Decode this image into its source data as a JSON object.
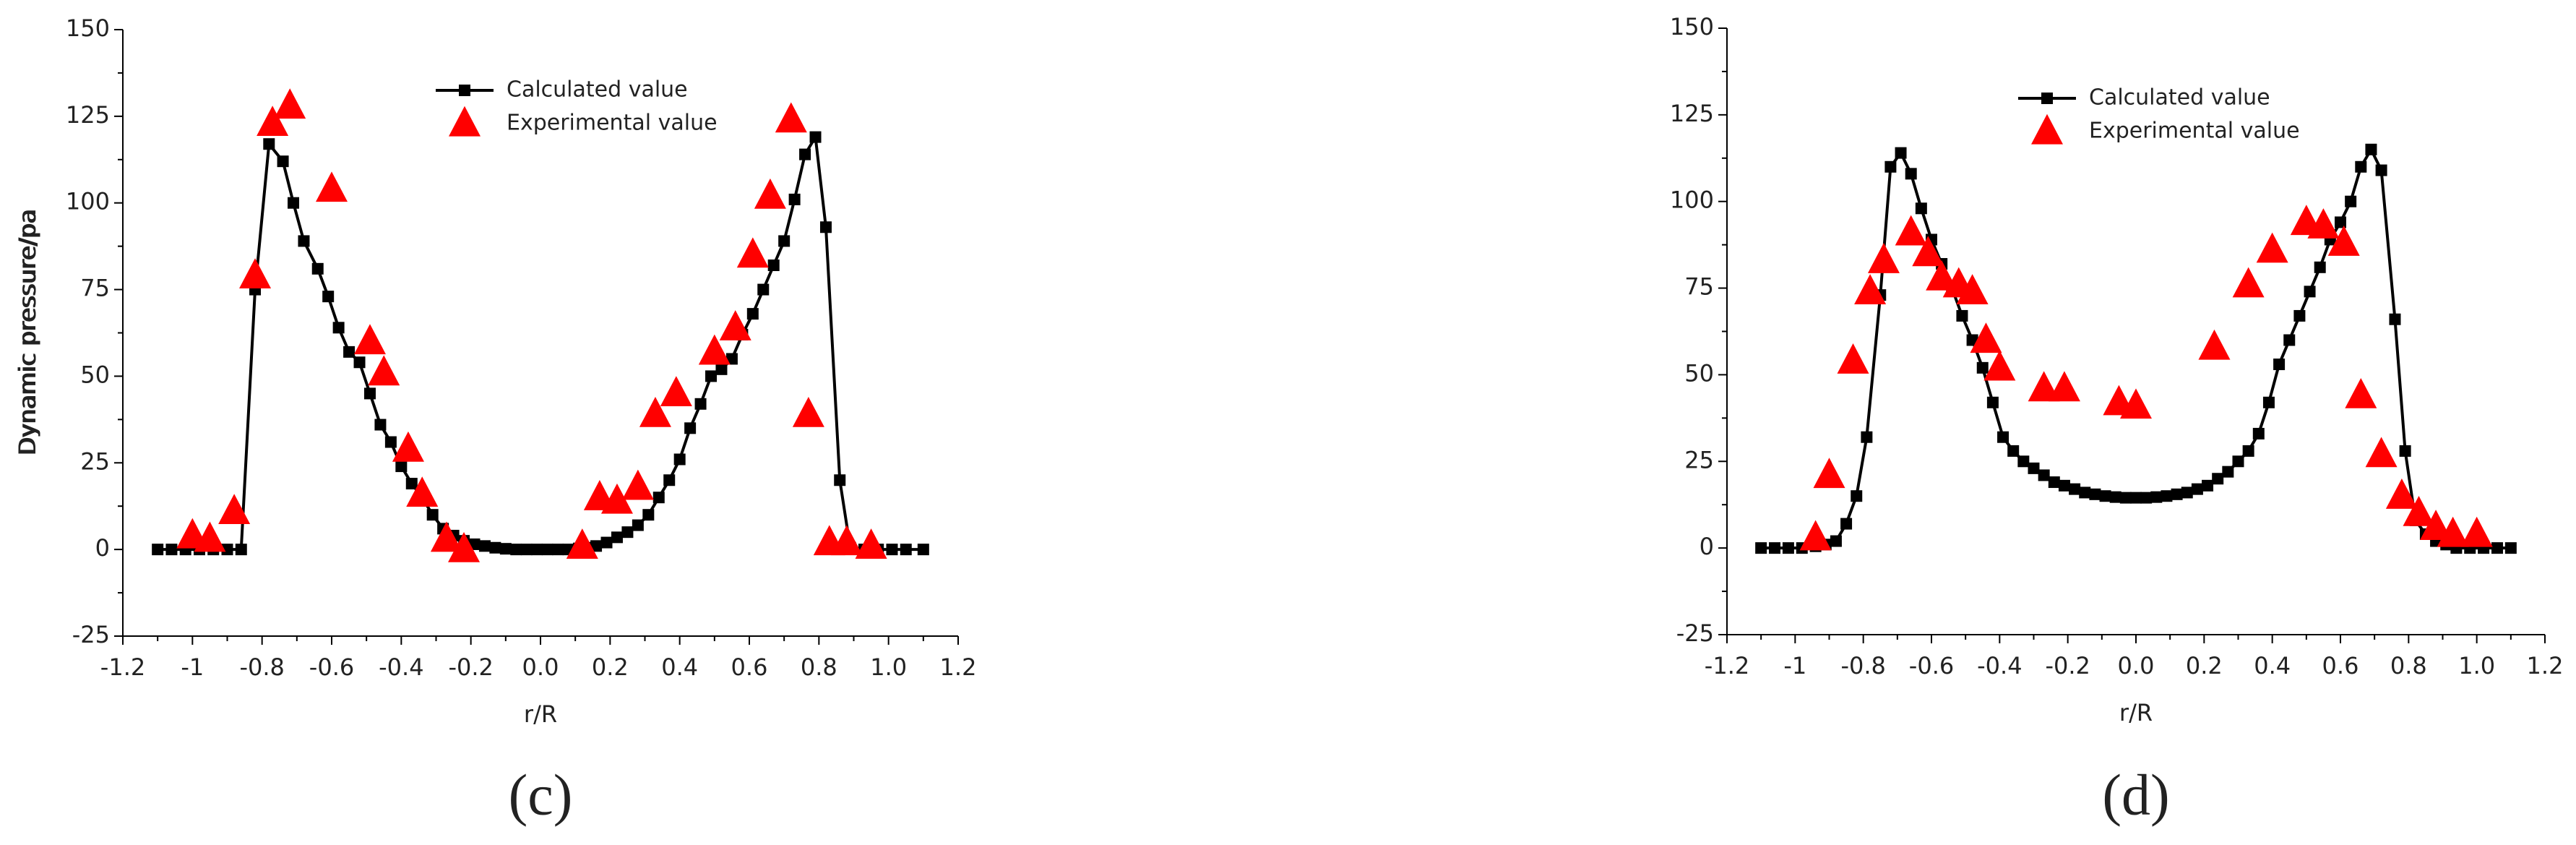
{
  "chart_data": [
    {
      "type": "line",
      "panel_label": "(c)",
      "x_label": "r/R",
      "y_label": "Dynamic pressure/pa",
      "xlim": [
        -1.2,
        1.2
      ],
      "ylim": [
        -25,
        150
      ],
      "xticks": [
        -1.2,
        -1.0,
        -0.8,
        -0.6,
        -0.4,
        -0.2,
        {
          "value": 0,
          "label": "0.0"
        },
        0.2,
        0.4,
        0.6,
        0.8,
        {
          "value": 1,
          "label": "1.0"
        },
        1.2
      ],
      "yticks": [
        -25,
        0,
        25,
        50,
        75,
        100,
        125,
        150
      ],
      "series": [
        {
          "name": "Calculated value",
          "color": "#000000",
          "marker": "square",
          "line": true,
          "x": [
            -1.1,
            -1.06,
            -1.02,
            -0.98,
            -0.94,
            -0.9,
            -0.86,
            -0.82,
            -0.78,
            -0.74,
            -0.71,
            -0.68,
            -0.64,
            -0.61,
            -0.58,
            -0.55,
            -0.52,
            -0.49,
            -0.46,
            -0.43,
            -0.4,
            -0.37,
            -0.34,
            -0.31,
            -0.28,
            -0.25,
            -0.22,
            -0.19,
            -0.16,
            -0.13,
            -0.1,
            -0.07,
            -0.04,
            -0.01,
            0.02,
            0.05,
            0.08,
            0.11,
            0.13,
            0.16,
            0.19,
            0.22,
            0.25,
            0.28,
            0.31,
            0.34,
            0.37,
            0.4,
            0.43,
            0.46,
            0.49,
            0.52,
            0.55,
            0.58,
            0.61,
            0.64,
            0.67,
            0.7,
            0.73,
            0.76,
            0.79,
            0.82,
            0.86,
            0.89,
            0.93,
            0.97,
            1.01,
            1.05,
            1.1
          ],
          "values": [
            0,
            0,
            0,
            0,
            0,
            0,
            0,
            75,
            117,
            112,
            100,
            89,
            81,
            73,
            64,
            57,
            54,
            45,
            36,
            31,
            24,
            19,
            15,
            10,
            6,
            4,
            2.5,
            1.5,
            1,
            0.5,
            0.2,
            0,
            0,
            0,
            0,
            0,
            0,
            0.3,
            0.5,
            1,
            2,
            3.5,
            5,
            7,
            10,
            15,
            20,
            26,
            35,
            42,
            50,
            52,
            55,
            62,
            68,
            75,
            82,
            89,
            101,
            114,
            119,
            93,
            20,
            0.5,
            0,
            0,
            0,
            0,
            0
          ]
        },
        {
          "name": "Experimental value",
          "color": "#ff0000",
          "marker": "triangle",
          "line": false,
          "x": [
            -1.0,
            -0.95,
            -0.88,
            -0.82,
            -0.77,
            -0.72,
            -0.6,
            -0.49,
            -0.45,
            -0.38,
            -0.34,
            -0.27,
            -0.22,
            0.12,
            0.17,
            0.22,
            0.28,
            0.33,
            0.39,
            0.5,
            0.56,
            0.61,
            0.66,
            0.72,
            0.77,
            0.83,
            0.88,
            0.95
          ],
          "values": [
            4,
            3,
            11,
            79,
            123,
            128,
            104,
            60,
            51,
            29,
            16,
            3,
            0,
            1,
            15,
            14,
            18,
            39,
            45,
            57,
            64,
            85,
            102,
            124,
            39,
            2,
            2,
            1
          ]
        }
      ]
    },
    {
      "type": "line",
      "panel_label": "(d)",
      "x_label": "r/R",
      "y_label": "Dynamic pressure/pa",
      "xlim": [
        -1.2,
        1.2
      ],
      "ylim": [
        -25,
        150
      ],
      "xticks": [
        -1.2,
        -1.0,
        -0.8,
        -0.6,
        -0.4,
        -0.2,
        {
          "value": 0,
          "label": "0.0"
        },
        0.2,
        0.4,
        0.6,
        0.8,
        {
          "value": 1,
          "label": "1.0"
        },
        1.2
      ],
      "yticks": [
        -25,
        0,
        25,
        50,
        75,
        100,
        125,
        150
      ],
      "series": [
        {
          "name": "Calculated value",
          "color": "#000000",
          "marker": "square",
          "line": true,
          "x": [
            -1.1,
            -1.06,
            -1.02,
            -0.98,
            -0.94,
            -0.91,
            -0.88,
            -0.85,
            -0.82,
            -0.79,
            -0.75,
            -0.72,
            -0.69,
            -0.66,
            -0.63,
            -0.6,
            -0.57,
            -0.54,
            -0.51,
            -0.48,
            -0.45,
            -0.42,
            -0.39,
            -0.36,
            -0.33,
            -0.3,
            -0.27,
            -0.24,
            -0.21,
            -0.18,
            -0.15,
            -0.12,
            -0.09,
            -0.06,
            -0.03,
            0,
            0.03,
            0.06,
            0.09,
            0.12,
            0.15,
            0.18,
            0.21,
            0.24,
            0.27,
            0.3,
            0.33,
            0.36,
            0.39,
            0.42,
            0.45,
            0.48,
            0.51,
            0.54,
            0.57,
            0.6,
            0.63,
            0.66,
            0.69,
            0.72,
            0.76,
            0.79,
            0.82,
            0.85,
            0.88,
            0.91,
            0.94,
            0.98,
            1.02,
            1.06,
            1.1
          ],
          "values": [
            0,
            0,
            0,
            0,
            0.5,
            1,
            2,
            7,
            15,
            32,
            73,
            110,
            114,
            108,
            98,
            89,
            82,
            75,
            67,
            60,
            52,
            42,
            32,
            28,
            25,
            23,
            21,
            19,
            18,
            17,
            16,
            15.5,
            15,
            14.7,
            14.5,
            14.5,
            14.5,
            14.7,
            15,
            15.5,
            16,
            17,
            18,
            20,
            22,
            25,
            28,
            33,
            42,
            53,
            60,
            67,
            74,
            81,
            89,
            94,
            100,
            110,
            115,
            109,
            66,
            28,
            8,
            4,
            2,
            1,
            0,
            0,
            0,
            0,
            0
          ]
        },
        {
          "name": "Experimental value",
          "color": "#ff0000",
          "marker": "triangle",
          "line": false,
          "x": [
            -0.94,
            -0.9,
            -0.83,
            -0.78,
            -0.74,
            -0.66,
            -0.61,
            -0.57,
            -0.52,
            -0.48,
            -0.44,
            -0.4,
            -0.27,
            -0.21,
            -0.05,
            0.0,
            0.23,
            0.33,
            0.4,
            0.5,
            0.55,
            0.61,
            0.66,
            0.72,
            0.78,
            0.83,
            0.88,
            0.93,
            1.0
          ],
          "values": [
            3,
            21,
            54,
            74,
            83,
            91,
            85,
            78,
            76,
            74,
            60,
            52,
            46,
            46,
            42,
            41,
            58,
            76,
            86,
            94,
            93,
            88,
            44,
            27,
            15,
            10,
            6,
            4,
            4
          ]
        }
      ]
    }
  ]
}
